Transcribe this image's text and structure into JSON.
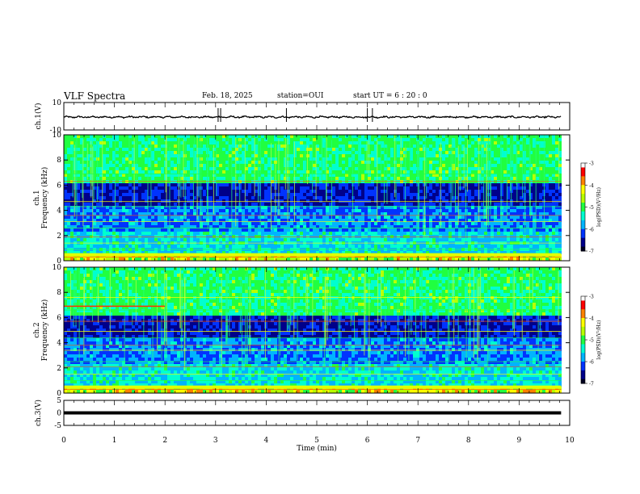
{
  "header": {
    "title": "VLF Spectra",
    "date": "Feb. 18, 2025",
    "station": "station=OUI",
    "start_ut": "start  UT =   6 : 20 : 0"
  },
  "chart_data": [
    {
      "type": "line",
      "name": "ch1-waveform",
      "ylabel": "ch.1(V)",
      "ylim": [
        -10,
        10
      ],
      "yticks": [
        -10,
        10
      ],
      "xlim": [
        0,
        10
      ],
      "x_data_end": 9.83
    },
    {
      "type": "heatmap",
      "name": "ch1-spectrogram",
      "ylabel": "ch.1\nFrequency (kHz)",
      "ylim": [
        0,
        10
      ],
      "yticks": [
        0,
        2,
        4,
        6,
        8,
        10
      ],
      "xlim": [
        0,
        10
      ],
      "x_data_end": 9.83,
      "colorbar": {
        "label": "log(PSD)(V²/Hz)",
        "range": [
          -7,
          -3
        ],
        "ticks": [
          -3,
          -4,
          -5,
          -6,
          -7
        ]
      }
    },
    {
      "type": "heatmap",
      "name": "ch2-spectrogram",
      "ylabel": "ch.2\nFrequency (kHz)",
      "ylim": [
        0,
        10
      ],
      "yticks": [
        0,
        2,
        4,
        6,
        8,
        10
      ],
      "xlim": [
        0,
        10
      ],
      "x_data_end": 9.83,
      "colorbar": {
        "label": "log(PSD)(V²/Hz)",
        "range": [
          -7,
          -3
        ],
        "ticks": [
          -3,
          -4,
          -5,
          -6,
          -7
        ]
      }
    },
    {
      "type": "line",
      "name": "ch3-waveform",
      "ylabel": "ch.3(V)",
      "ylim": [
        -5,
        5
      ],
      "yticks": [
        -5,
        0,
        5
      ],
      "xlim": [
        0,
        10
      ],
      "x_data_end": 9.83,
      "value": 0
    }
  ],
  "xaxis": {
    "label": "Time (min)",
    "ticks": [
      0,
      1,
      2,
      3,
      4,
      5,
      6,
      7,
      8,
      9,
      10
    ]
  },
  "colormap": [
    "#000020",
    "#00008a",
    "#0033ff",
    "#00b4ff",
    "#00ffd0",
    "#20ff40",
    "#b8ff00",
    "#ffff00",
    "#ff8000",
    "#ff0000",
    "#ffffff"
  ]
}
